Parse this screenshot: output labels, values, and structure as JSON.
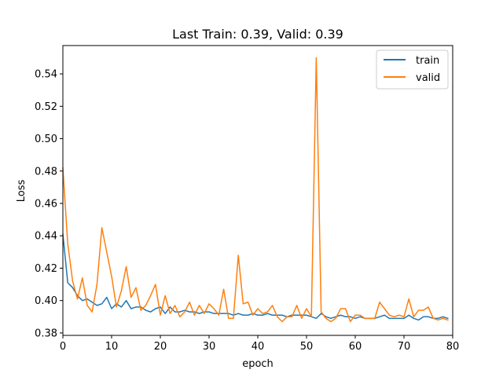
{
  "chart_data": {
    "type": "line",
    "title": "Last Train: 0.39, Valid: 0.39",
    "xlabel": "epoch",
    "ylabel": "Loss",
    "xlim": [
      0,
      80
    ],
    "ylim": [
      0.3785,
      0.5575
    ],
    "x_ticks": [
      0,
      10,
      20,
      30,
      40,
      50,
      60,
      70,
      80
    ],
    "y_ticks": [
      0.38,
      0.4,
      0.42,
      0.44,
      0.46,
      0.48,
      0.5,
      0.52,
      0.54
    ],
    "grid": false,
    "legend_position": "upper right",
    "series": [
      {
        "name": "train",
        "color": "#1f77b4",
        "x": [
          0,
          1,
          2,
          3,
          4,
          5,
          6,
          7,
          8,
          9,
          10,
          11,
          12,
          13,
          14,
          15,
          16,
          17,
          18,
          19,
          20,
          21,
          22,
          23,
          24,
          25,
          26,
          27,
          28,
          29,
          30,
          31,
          32,
          33,
          34,
          35,
          36,
          37,
          38,
          39,
          40,
          41,
          42,
          43,
          44,
          45,
          46,
          47,
          48,
          49,
          50,
          51,
          52,
          53,
          54,
          55,
          56,
          57,
          58,
          59,
          60,
          61,
          62,
          63,
          64,
          65,
          66,
          67,
          68,
          69,
          70,
          71,
          72,
          73,
          74,
          75,
          76,
          77,
          78,
          79
        ],
        "values": [
          0.441,
          0.411,
          0.408,
          0.403,
          0.4,
          0.401,
          0.399,
          0.397,
          0.398,
          0.402,
          0.395,
          0.398,
          0.396,
          0.4,
          0.395,
          0.396,
          0.396,
          0.394,
          0.393,
          0.395,
          0.396,
          0.392,
          0.396,
          0.393,
          0.393,
          0.394,
          0.393,
          0.393,
          0.392,
          0.393,
          0.393,
          0.392,
          0.392,
          0.392,
          0.392,
          0.391,
          0.392,
          0.391,
          0.391,
          0.392,
          0.391,
          0.391,
          0.392,
          0.391,
          0.391,
          0.391,
          0.39,
          0.391,
          0.391,
          0.391,
          0.391,
          0.39,
          0.389,
          0.392,
          0.39,
          0.389,
          0.39,
          0.391,
          0.39,
          0.39,
          0.389,
          0.39,
          0.389,
          0.389,
          0.389,
          0.39,
          0.391,
          0.389,
          0.389,
          0.389,
          0.389,
          0.391,
          0.389,
          0.388,
          0.39,
          0.39,
          0.389,
          0.389,
          0.39,
          0.389
        ]
      },
      {
        "name": "valid",
        "color": "#ff7f0e",
        "x": [
          0,
          1,
          2,
          3,
          4,
          5,
          6,
          7,
          8,
          9,
          10,
          11,
          12,
          13,
          14,
          15,
          16,
          17,
          18,
          19,
          20,
          21,
          22,
          23,
          24,
          25,
          26,
          27,
          28,
          29,
          30,
          31,
          32,
          33,
          34,
          35,
          36,
          37,
          38,
          39,
          40,
          41,
          42,
          43,
          44,
          45,
          46,
          47,
          48,
          49,
          50,
          51,
          52,
          53,
          54,
          55,
          56,
          57,
          58,
          59,
          60,
          61,
          62,
          63,
          64,
          65,
          66,
          67,
          68,
          69,
          70,
          71,
          72,
          73,
          74,
          75,
          76,
          77,
          78,
          79
        ],
        "values": [
          0.482,
          0.435,
          0.412,
          0.401,
          0.414,
          0.397,
          0.393,
          0.41,
          0.445,
          0.43,
          0.415,
          0.396,
          0.406,
          0.421,
          0.402,
          0.408,
          0.394,
          0.397,
          0.403,
          0.41,
          0.391,
          0.403,
          0.392,
          0.397,
          0.39,
          0.393,
          0.399,
          0.391,
          0.397,
          0.392,
          0.398,
          0.395,
          0.391,
          0.407,
          0.389,
          0.389,
          0.428,
          0.398,
          0.399,
          0.391,
          0.395,
          0.392,
          0.393,
          0.397,
          0.39,
          0.387,
          0.39,
          0.39,
          0.397,
          0.389,
          0.395,
          0.39,
          0.55,
          0.393,
          0.389,
          0.387,
          0.389,
          0.395,
          0.395,
          0.387,
          0.391,
          0.391,
          0.389,
          0.389,
          0.389,
          0.399,
          0.395,
          0.391,
          0.39,
          0.391,
          0.39,
          0.401,
          0.39,
          0.394,
          0.394,
          0.396,
          0.389,
          0.388,
          0.389,
          0.388
        ]
      }
    ]
  }
}
